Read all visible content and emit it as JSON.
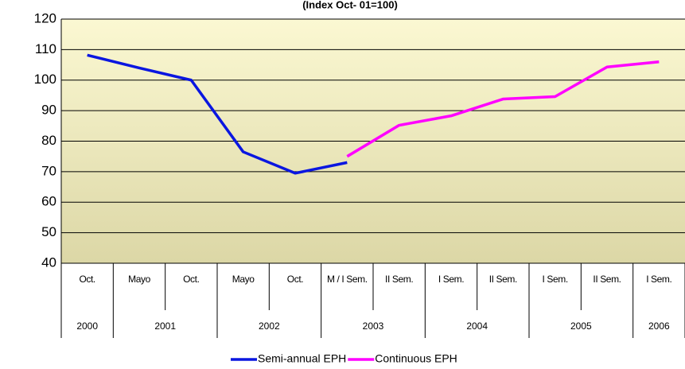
{
  "chart_data": {
    "type": "line",
    "title": "(Index Oct- 01=100)",
    "categories": [
      "Oct.",
      "Mayo",
      "Oct.",
      "Mayo",
      "Oct.",
      "M / I Sem.",
      "II Sem.",
      "I Sem.",
      "II Sem.",
      "I Sem.",
      "II Sem.",
      "I Sem."
    ],
    "category_groups": [
      "2000",
      "2001",
      null,
      "2002",
      null,
      "2003",
      null,
      "2004",
      null,
      "2005",
      null,
      "2006"
    ],
    "series": [
      {
        "name": "Semi-annual EPH",
        "color": "#0a16e0",
        "values": [
          108.2,
          104,
          100,
          76.5,
          69.5,
          73,
          null,
          null,
          null,
          null,
          null,
          null
        ]
      },
      {
        "name": "Continuous EPH",
        "color": "#ff00ff",
        "values": [
          null,
          null,
          null,
          null,
          null,
          75,
          85.2,
          88.3,
          93.8,
          94.6,
          104.3,
          106
        ]
      }
    ],
    "ylim": [
      40,
      120
    ],
    "yticks": [
      40,
      50,
      60,
      70,
      80,
      90,
      100,
      110,
      120
    ],
    "grid": true,
    "legend": "bottom"
  }
}
